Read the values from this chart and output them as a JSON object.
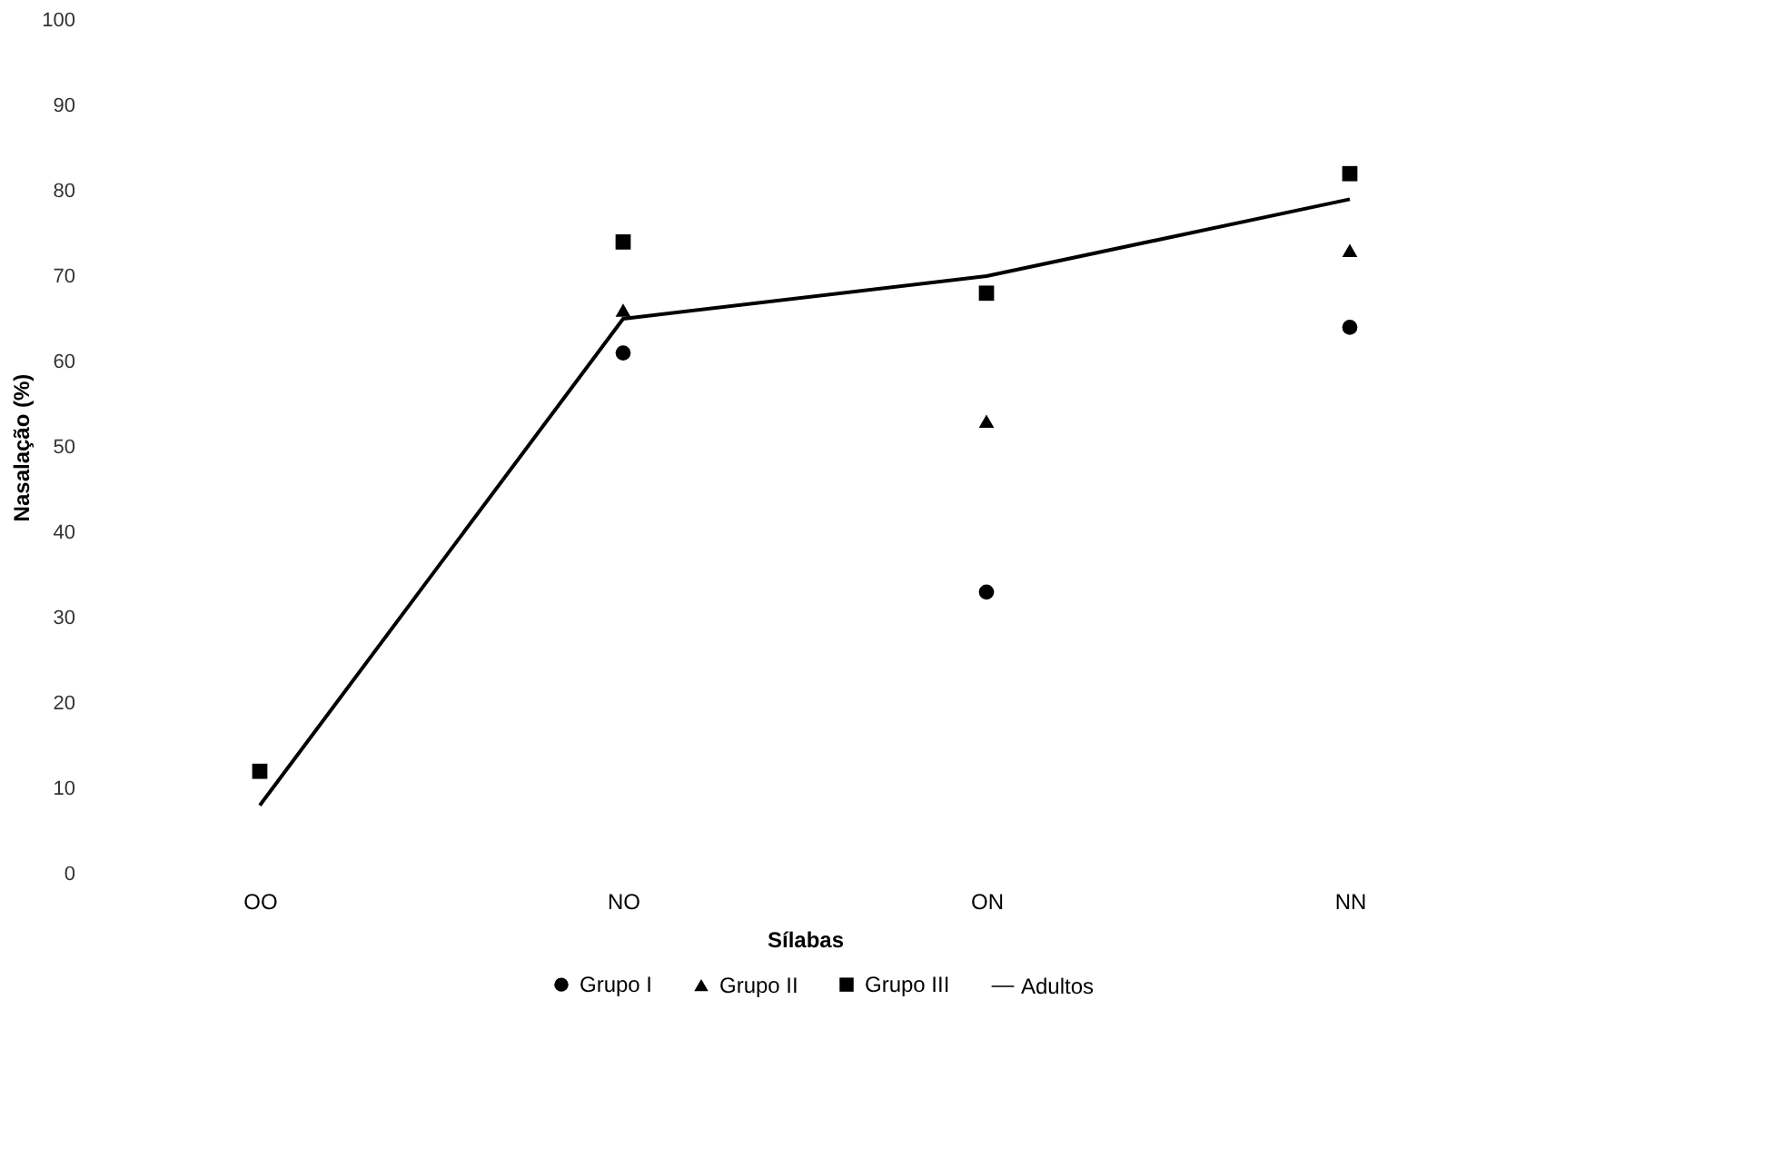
{
  "chart_data": {
    "type": "scatter",
    "xlabel": "Sílabas",
    "ylabel": "Nasalação (%)",
    "categories": [
      "OO",
      "NO",
      "ON",
      "NN"
    ],
    "ylim": [
      0,
      100
    ],
    "yticks": [
      0,
      10,
      20,
      30,
      40,
      50,
      60,
      70,
      80,
      90,
      100
    ],
    "grid": false,
    "legend": "bottom",
    "series": [
      {
        "name": "Grupo I",
        "color": "#000000",
        "marker": "circle",
        "values": [
          null,
          61,
          33,
          64
        ]
      },
      {
        "name": "Grupo II",
        "color": "#000000",
        "marker": "triangle",
        "values": [
          null,
          66,
          53,
          73
        ]
      },
      {
        "name": "Grupo III",
        "color": "#000000",
        "marker": "square",
        "values": [
          12,
          74,
          68,
          82
        ]
      },
      {
        "name": "Adultos",
        "color": "#000000",
        "type": "line",
        "marker": "none",
        "line_style": "solid",
        "values": [
          8,
          65,
          70,
          79
        ]
      }
    ]
  }
}
